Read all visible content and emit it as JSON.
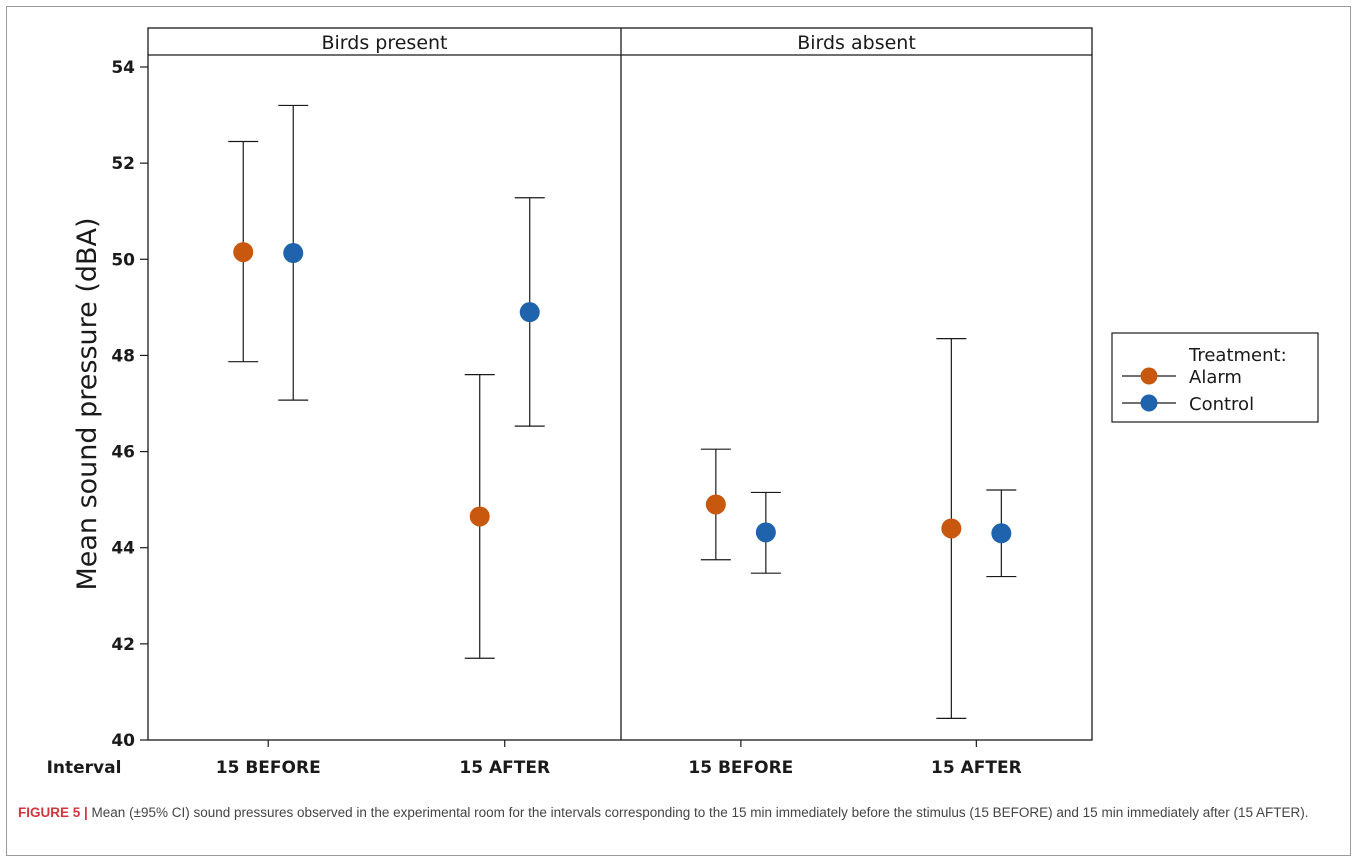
{
  "chart_data": {
    "type": "scatter",
    "panels": [
      "Birds present",
      "Birds absent"
    ],
    "categories": [
      "15 BEFORE",
      "15 AFTER"
    ],
    "interval_label": "Interval",
    "ylabel": "Mean sound pressure (dBA)",
    "ylim": [
      40,
      54
    ],
    "yticks": [
      40,
      42,
      44,
      46,
      48,
      50,
      52,
      54
    ],
    "grid": false,
    "legend_title": "Treatment:",
    "legend_position": "right",
    "series": [
      {
        "name": "Alarm",
        "color": "#c8580e",
        "points": [
          {
            "panel": "Birds present",
            "interval": "15 BEFORE",
            "mean": 50.15,
            "lower": 47.87,
            "upper": 52.45
          },
          {
            "panel": "Birds present",
            "interval": "15 AFTER",
            "mean": 44.65,
            "lower": 41.7,
            "upper": 47.6
          },
          {
            "panel": "Birds absent",
            "interval": "15 BEFORE",
            "mean": 44.9,
            "lower": 43.75,
            "upper": 46.05
          },
          {
            "panel": "Birds absent",
            "interval": "15 AFTER",
            "mean": 44.4,
            "lower": 40.45,
            "upper": 48.35
          }
        ]
      },
      {
        "name": "Control",
        "color": "#1f63ad",
        "points": [
          {
            "panel": "Birds present",
            "interval": "15 BEFORE",
            "mean": 50.13,
            "lower": 47.07,
            "upper": 53.2
          },
          {
            "panel": "Birds present",
            "interval": "15 AFTER",
            "mean": 48.9,
            "lower": 46.53,
            "upper": 51.28
          },
          {
            "panel": "Birds absent",
            "interval": "15 BEFORE",
            "mean": 44.32,
            "lower": 43.47,
            "upper": 45.15
          },
          {
            "panel": "Birds absent",
            "interval": "15 AFTER",
            "mean": 44.3,
            "lower": 43.4,
            "upper": 45.2
          }
        ]
      }
    ]
  },
  "caption": {
    "label": "FIGURE 5 |",
    "text": " Mean (±95% CI) sound pressures observed in the experimental room for the intervals corresponding to the 15 min immediately before the stimulus (15 BEFORE) and 15 min immediately after (15 AFTER)."
  }
}
